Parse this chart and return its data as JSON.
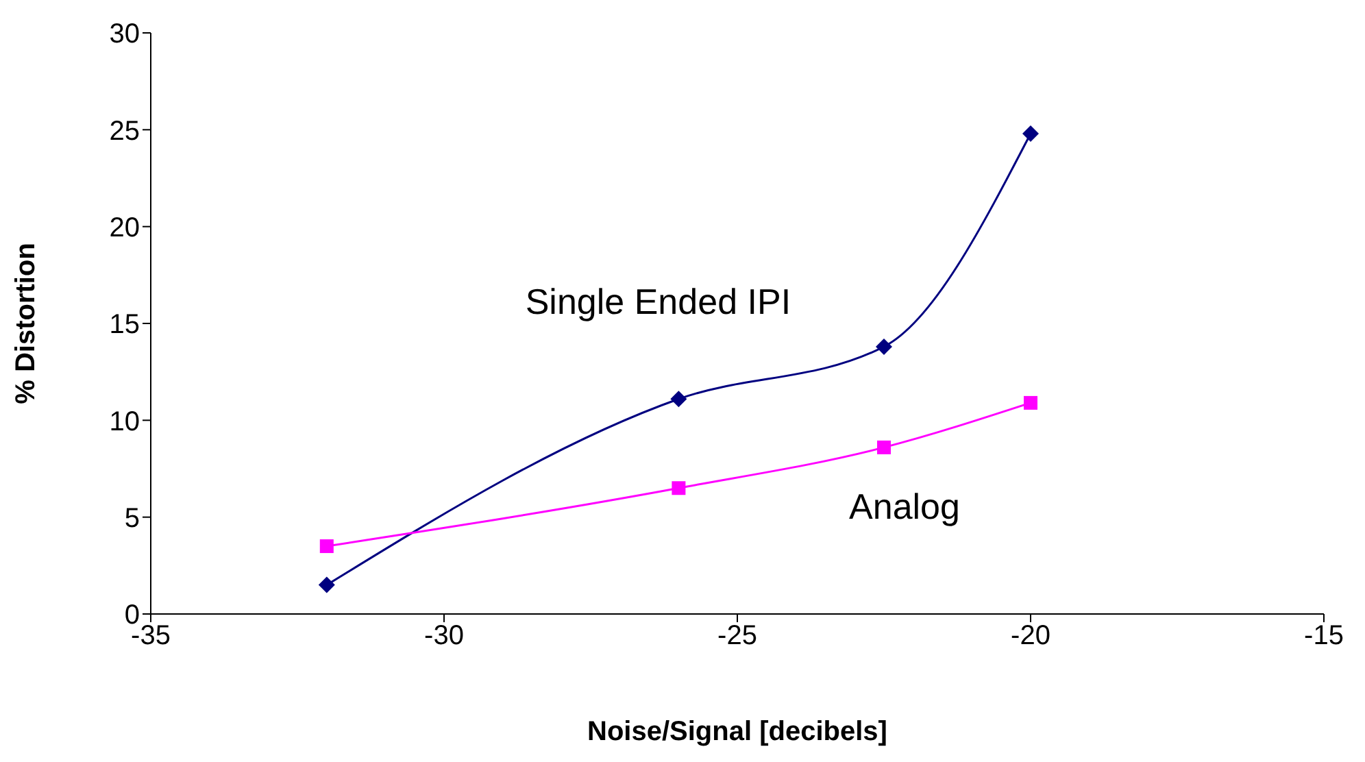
{
  "chart_data": {
    "type": "line",
    "xlabel": "Noise/Signal [decibels]",
    "ylabel": "% Distortion",
    "xlim": [
      -35,
      -15
    ],
    "xticks": [
      -35,
      -30,
      -25,
      -20,
      -15
    ],
    "ylim": [
      0,
      30
    ],
    "yticks": [
      0,
      5,
      10,
      15,
      20,
      25,
      30
    ],
    "grid": false,
    "legend": false,
    "series": [
      {
        "name": "Single Ended IPI",
        "color": "#000080",
        "marker": "diamond",
        "x": [
          -32,
          -26,
          -22.5,
          -20
        ],
        "values": [
          1.5,
          11.1,
          13.8,
          24.8
        ]
      },
      {
        "name": "Analog",
        "color": "#ff00ff",
        "marker": "square",
        "x": [
          -32,
          -26,
          -22.5,
          -20
        ],
        "values": [
          3.5,
          6.5,
          8.6,
          10.9
        ]
      }
    ]
  }
}
